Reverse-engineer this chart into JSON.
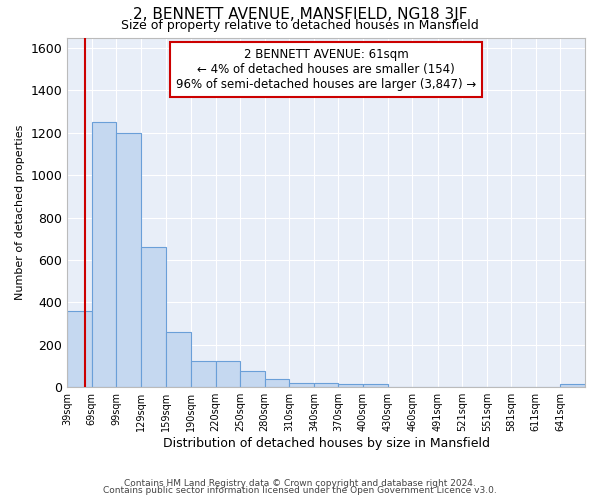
{
  "title1": "2, BENNETT AVENUE, MANSFIELD, NG18 3JF",
  "title2": "Size of property relative to detached houses in Mansfield",
  "xlabel": "Distribution of detached houses by size in Mansfield",
  "ylabel": "Number of detached properties",
  "footer1": "Contains HM Land Registry data © Crown copyright and database right 2024.",
  "footer2": "Contains public sector information licensed under the Open Government Licence v3.0.",
  "annotation_line1": "2 BENNETT AVENUE: 61sqm",
  "annotation_line2": "← 4% of detached houses are smaller (154)",
  "annotation_line3": "96% of semi-detached houses are larger (3,847) →",
  "bar_color": "#c5d8f0",
  "bar_edge_color": "#6a9fd8",
  "vline_x": 61,
  "vline_color": "#cc0000",
  "background_color": "#e8eef8",
  "bin_edges": [
    39,
    69,
    99,
    129,
    159,
    190,
    220,
    250,
    280,
    310,
    340,
    370,
    400,
    430,
    460,
    491,
    521,
    551,
    581,
    611,
    641,
    671
  ],
  "tick_labels": [
    "39sqm",
    "69sqm",
    "99sqm",
    "129sqm",
    "159sqm",
    "190sqm",
    "220sqm",
    "250sqm",
    "280sqm",
    "310sqm",
    "340sqm",
    "370sqm",
    "400sqm",
    "430sqm",
    "460sqm",
    "491sqm",
    "521sqm",
    "551sqm",
    "581sqm",
    "611sqm",
    "641sqm"
  ],
  "values": [
    360,
    1250,
    1200,
    660,
    260,
    125,
    125,
    75,
    40,
    22,
    22,
    15,
    15,
    0,
    0,
    0,
    0,
    0,
    0,
    0,
    15
  ],
  "ylim": [
    0,
    1650
  ],
  "yticks": [
    0,
    200,
    400,
    600,
    800,
    1000,
    1200,
    1400,
    1600
  ],
  "annotation_box_color": "white",
  "annotation_box_edge_color": "#cc0000",
  "title1_fontsize": 11,
  "title2_fontsize": 9,
  "ylabel_fontsize": 8,
  "xlabel_fontsize": 9,
  "tick_fontsize": 7,
  "footer_fontsize": 6.5
}
